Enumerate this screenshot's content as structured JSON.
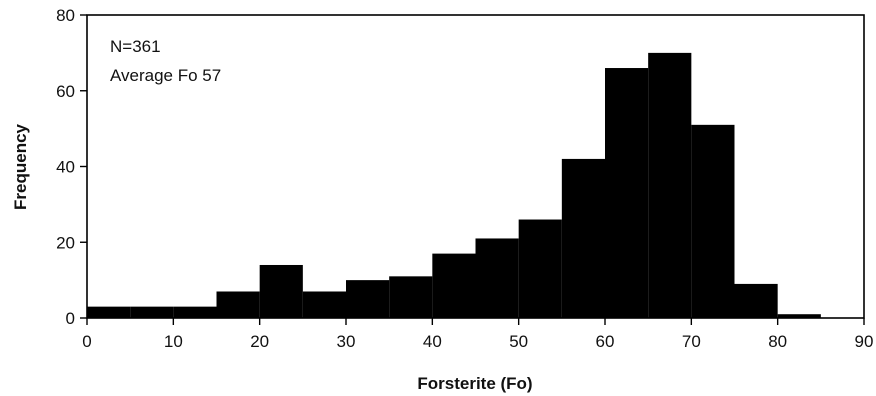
{
  "chart_data": {
    "type": "bar",
    "title": "",
    "xlabel": "Forsterite (Fo)",
    "ylabel": "Frequency",
    "xlim": [
      0,
      90
    ],
    "ylim": [
      0,
      80
    ],
    "xticks": [
      0,
      10,
      20,
      30,
      40,
      50,
      60,
      70,
      80,
      90
    ],
    "yticks": [
      0,
      20,
      40,
      60,
      80
    ],
    "grid": false,
    "bar_color": "#000000",
    "annotations": [
      "N=361",
      "Average Fo 57"
    ],
    "bins": [
      {
        "x0": 0,
        "x1": 5,
        "count": 3
      },
      {
        "x0": 5,
        "x1": 10,
        "count": 3
      },
      {
        "x0": 10,
        "x1": 15,
        "count": 3
      },
      {
        "x0": 15,
        "x1": 20,
        "count": 7
      },
      {
        "x0": 20,
        "x1": 25,
        "count": 14
      },
      {
        "x0": 25,
        "x1": 30,
        "count": 7
      },
      {
        "x0": 30,
        "x1": 35,
        "count": 10
      },
      {
        "x0": 35,
        "x1": 40,
        "count": 11
      },
      {
        "x0": 40,
        "x1": 45,
        "count": 17
      },
      {
        "x0": 45,
        "x1": 50,
        "count": 21
      },
      {
        "x0": 50,
        "x1": 55,
        "count": 26
      },
      {
        "x0": 55,
        "x1": 60,
        "count": 42
      },
      {
        "x0": 60,
        "x1": 65,
        "count": 66
      },
      {
        "x0": 65,
        "x1": 70,
        "count": 70
      },
      {
        "x0": 70,
        "x1": 75,
        "count": 51
      },
      {
        "x0": 75,
        "x1": 80,
        "count": 9
      },
      {
        "x0": 80,
        "x1": 85,
        "count": 1
      }
    ]
  }
}
